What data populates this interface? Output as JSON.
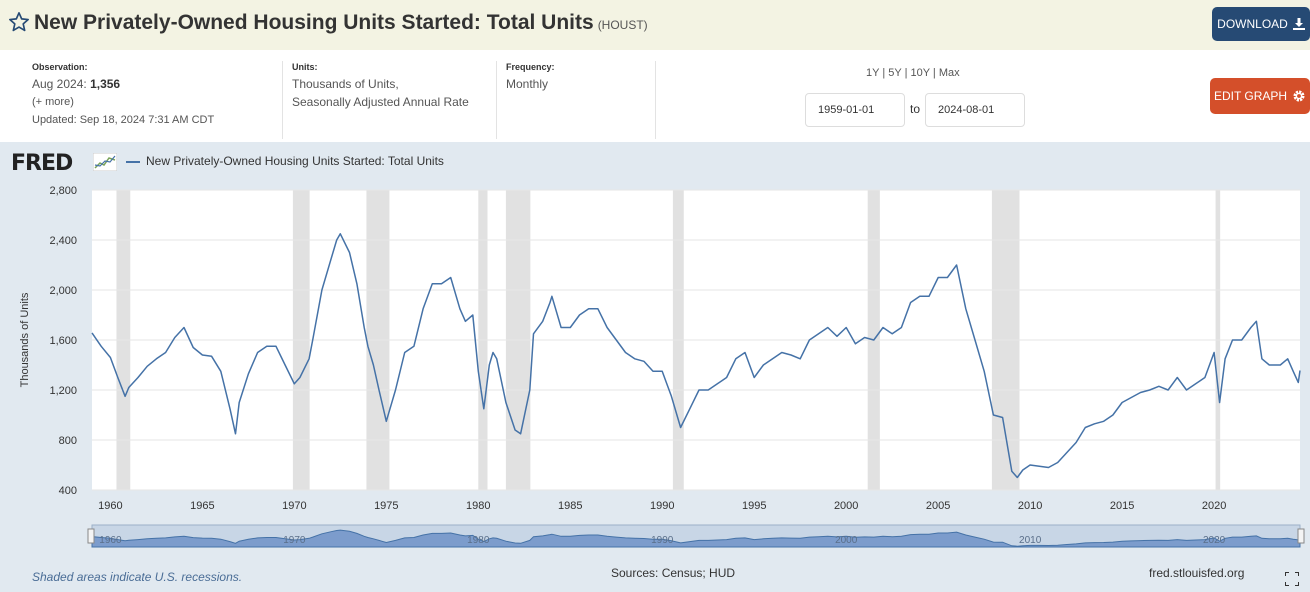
{
  "header": {
    "title": "New Privately-Owned Housing Units Started: Total Units",
    "series_id": "(HOUST)",
    "download_label": "DOWNLOAD",
    "star_icon": "star-outline-icon",
    "download_icon": "download-icon"
  },
  "meta": {
    "observation_label": "Observation:",
    "observation_date": "Aug 2024:",
    "observation_value": "1,356",
    "more_label": "(+ more)",
    "updated": "Updated: Sep 18, 2024 7:31 AM CDT",
    "units_label": "Units:",
    "units_line1": "Thousands of Units,",
    "units_line2": "Seasonally Adjusted Annual Rate",
    "frequency_label": "Frequency:",
    "frequency_value": "Monthly"
  },
  "range": {
    "links": [
      "1Y",
      "5Y",
      "10Y",
      "Max"
    ],
    "start_date": "1959-01-01",
    "to_label": "to",
    "end_date": "2024-08-01"
  },
  "edit_label": "EDIT GRAPH",
  "logo_text": "FRED",
  "footer": {
    "footnote": "Shaded areas indicate U.S. recessions.",
    "sources": "Sources: Census; HUD",
    "site": "fred.stlouisfed.org"
  },
  "colors": {
    "line": "#4572a7",
    "recession": "#e1e1e1",
    "panel": "#e1e9f0",
    "download_bg": "#264a74",
    "edit_bg": "#d44f2a"
  },
  "chart_data": {
    "type": "line",
    "ylabel": "Thousands of Units",
    "ylim": [
      400,
      2800
    ],
    "yticks": [
      400,
      800,
      1200,
      1600,
      2000,
      2400,
      2800
    ],
    "ytick_labels": [
      "400",
      "800",
      "1,200",
      "1,600",
      "2,000",
      "2,400",
      "2,800"
    ],
    "xlim": [
      1959.0,
      2024.67
    ],
    "xticks": [
      1960,
      1965,
      1970,
      1975,
      1980,
      1985,
      1990,
      1995,
      2000,
      2005,
      2010,
      2015,
      2020
    ],
    "xtick_labels": [
      "1960",
      "1965",
      "1970",
      "1975",
      "1980",
      "1985",
      "1990",
      "1995",
      "2000",
      "2005",
      "2010",
      "2015",
      "2020"
    ],
    "recessions": [
      [
        1960.33,
        1961.08
      ],
      [
        1969.92,
        1970.83
      ],
      [
        1973.92,
        1975.17
      ],
      [
        1980.0,
        1980.5
      ],
      [
        1981.5,
        1982.83
      ],
      [
        1990.58,
        1991.17
      ],
      [
        2001.17,
        2001.83
      ],
      [
        2007.92,
        2009.42
      ],
      [
        2020.08,
        2020.33
      ]
    ],
    "navigator_labels": [
      "1960",
      "1970",
      "1980",
      "1990",
      "2000",
      "2010",
      "2020"
    ],
    "series": [
      {
        "name": "New Privately-Owned Housing Units Started: Total Units",
        "x": [
          1959.0,
          1959.5,
          1960.0,
          1960.4,
          1960.8,
          1961.0,
          1961.5,
          1962.0,
          1962.5,
          1963.0,
          1963.5,
          1964.0,
          1964.5,
          1965.0,
          1965.5,
          1966.0,
          1966.5,
          1966.8,
          1967.0,
          1967.5,
          1968.0,
          1968.5,
          1969.0,
          1969.5,
          1970.0,
          1970.3,
          1970.8,
          1971.0,
          1971.5,
          1972.0,
          1972.3,
          1972.5,
          1973.0,
          1973.4,
          1973.8,
          1974.0,
          1974.3,
          1974.6,
          1975.0,
          1975.5,
          1976.0,
          1976.5,
          1977.0,
          1977.5,
          1978.0,
          1978.5,
          1979.0,
          1979.3,
          1979.7,
          1980.0,
          1980.3,
          1980.6,
          1980.8,
          1981.0,
          1981.5,
          1982.0,
          1982.3,
          1982.8,
          1983.0,
          1983.5,
          1983.9,
          1984.0,
          1984.5,
          1985.0,
          1985.5,
          1986.0,
          1986.5,
          1987.0,
          1987.5,
          1988.0,
          1988.5,
          1989.0,
          1989.5,
          1990.0,
          1990.5,
          1991.0,
          1991.5,
          1992.0,
          1992.5,
          1993.0,
          1993.5,
          1994.0,
          1994.5,
          1995.0,
          1995.5,
          1996.0,
          1996.5,
          1997.0,
          1997.5,
          1998.0,
          1998.5,
          1999.0,
          1999.5,
          2000.0,
          2000.5,
          2001.0,
          2001.5,
          2002.0,
          2002.5,
          2003.0,
          2003.5,
          2004.0,
          2004.5,
          2005.0,
          2005.5,
          2006.0,
          2006.5,
          2007.0,
          2007.5,
          2008.0,
          2008.5,
          2009.0,
          2009.3,
          2009.6,
          2010.0,
          2010.5,
          2011.0,
          2011.5,
          2012.0,
          2012.5,
          2013.0,
          2013.5,
          2014.0,
          2014.5,
          2015.0,
          2015.5,
          2016.0,
          2016.5,
          2017.0,
          2017.5,
          2018.0,
          2018.5,
          2019.0,
          2019.5,
          2020.0,
          2020.3,
          2020.6,
          2021.0,
          2021.5,
          2022.0,
          2022.3,
          2022.6,
          2023.0,
          2023.3,
          2023.6,
          2024.0,
          2024.3,
          2024.58,
          2024.67
        ],
        "values": [
          1657,
          1550,
          1460,
          1300,
          1150,
          1220,
          1300,
          1390,
          1450,
          1500,
          1620,
          1700,
          1540,
          1480,
          1470,
          1350,
          1050,
          850,
          1100,
          1330,
          1500,
          1550,
          1550,
          1400,
          1250,
          1300,
          1450,
          1600,
          2000,
          2250,
          2400,
          2450,
          2300,
          2050,
          1700,
          1550,
          1400,
          1200,
          950,
          1200,
          1500,
          1550,
          1850,
          2050,
          2050,
          2100,
          1850,
          1750,
          1800,
          1350,
          1050,
          1400,
          1500,
          1450,
          1100,
          880,
          850,
          1200,
          1650,
          1750,
          1900,
          1950,
          1700,
          1700,
          1800,
          1850,
          1850,
          1700,
          1600,
          1500,
          1450,
          1430,
          1350,
          1350,
          1150,
          900,
          1050,
          1200,
          1200,
          1250,
          1300,
          1450,
          1500,
          1300,
          1400,
          1450,
          1500,
          1480,
          1450,
          1600,
          1650,
          1700,
          1630,
          1700,
          1570,
          1620,
          1600,
          1700,
          1650,
          1700,
          1900,
          1950,
          1950,
          2100,
          2100,
          2200,
          1850,
          1600,
          1350,
          1000,
          980,
          550,
          500,
          560,
          600,
          590,
          580,
          620,
          700,
          780,
          900,
          930,
          950,
          1000,
          1100,
          1140,
          1180,
          1200,
          1230,
          1200,
          1300,
          1200,
          1250,
          1300,
          1500,
          1100,
          1450,
          1600,
          1600,
          1700,
          1750,
          1450,
          1400,
          1400,
          1400,
          1450,
          1350,
          1260,
          1356
        ]
      }
    ]
  }
}
